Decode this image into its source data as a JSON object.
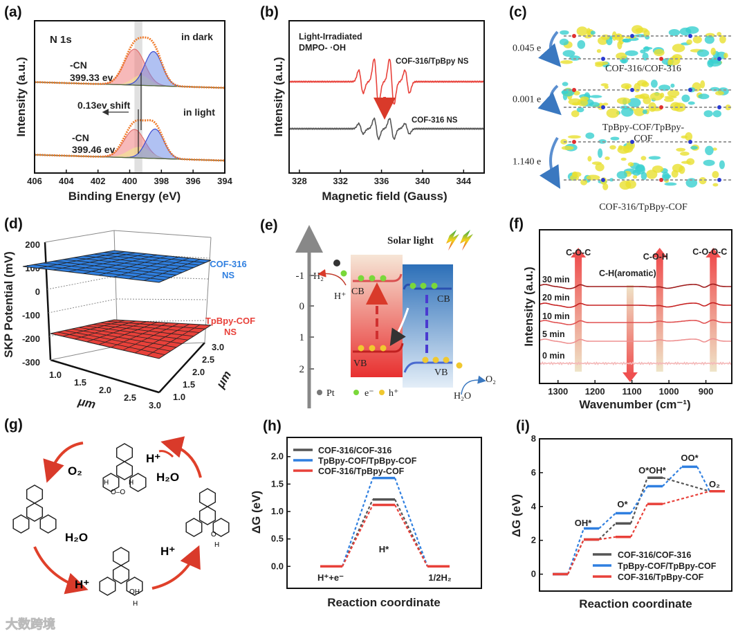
{
  "panel_labels": [
    "(a)",
    "(b)",
    "(c)",
    "(d)",
    "(e)",
    "(f)",
    "(g)",
    "(h)",
    "(i)"
  ],
  "watermark": "大数跨境",
  "chart_data": [
    {
      "id": "a",
      "type": "line",
      "title": "N 1s",
      "xlabel": "Binding Energy (eV)",
      "ylabel": "Intensity (a.u.)",
      "xlim": [
        406,
        394
      ],
      "xticks": [
        "406",
        "404",
        "402",
        "400",
        "398",
        "396",
        "394"
      ],
      "highlight_band_ev": [
        399.2,
        399.7
      ],
      "spectra": [
        {
          "name": "in dark",
          "cn_label": "-CN",
          "cn_value": "399.33 ev",
          "peaks": [
            {
              "component": "C-N",
              "center": 399.7,
              "width": 0.65,
              "height": 1.0,
              "color": "#f08080"
            },
            {
              "component": "yellow",
              "center": 399.3,
              "width": 0.55,
              "height": 0.28,
              "color": "#f2ee8a"
            },
            {
              "component": "blue",
              "center": 398.5,
              "width": 0.55,
              "height": 0.95,
              "color": "#6f8ee8"
            }
          ]
        },
        {
          "name": "in light",
          "cn_label": "-CN",
          "cn_value": "399.46 ev",
          "peaks": [
            {
              "component": "C-N",
              "center": 399.7,
              "width": 0.65,
              "height": 0.82,
              "color": "#f08080"
            },
            {
              "component": "yellow",
              "center": 399.4,
              "width": 0.7,
              "height": 0.32,
              "color": "#f2ee8a"
            },
            {
              "component": "blue",
              "center": 398.4,
              "width": 0.55,
              "height": 0.85,
              "color": "#6f8ee8"
            }
          ]
        }
      ],
      "shift_label": "0.13ev shift"
    },
    {
      "id": "b",
      "type": "line",
      "title_lines": [
        "Light-Irradiated",
        "DMPO- ·OH"
      ],
      "xlabel": "Magnetic field (Gauss)",
      "ylabel": "Intensity (a.u.)",
      "xlim": [
        327,
        346
      ],
      "xticks": [
        328,
        332,
        336,
        340,
        344
      ],
      "line_positions": [
        334.0,
        335.5,
        337.0,
        338.5
      ],
      "relative_intensities": [
        1,
        2,
        2,
        1
      ],
      "series": [
        {
          "name": "COF-316/TpBpy NS",
          "amplitude": 1.0,
          "color": "#e8413a"
        },
        {
          "name": "COF-316 NS",
          "amplitude": 0.45,
          "color": "#555555"
        }
      ]
    },
    {
      "id": "d",
      "type": "surface",
      "ylabel": "SKP Potential (mV)",
      "xlabel": "μm",
      "zlabel": "μm",
      "zlim": [
        -300,
        200
      ],
      "zticks": [
        "200",
        "100",
        "0",
        "-100",
        "-200",
        "-300"
      ],
      "xticks": [
        "1.0",
        "1.5",
        "2.0",
        "2.5",
        "3.0"
      ],
      "yticks": [
        "1.0",
        "1.5",
        "2.0",
        "2.5",
        "3.0"
      ],
      "series": [
        {
          "name_lines": [
            "COF-316",
            "NS"
          ],
          "potential_mV": 100,
          "color": "#2f7fe0"
        },
        {
          "name_lines": [
            "TpBpy-COF",
            "NS"
          ],
          "potential_mV": -200,
          "color": "#e8413a"
        }
      ]
    },
    {
      "id": "f",
      "type": "line",
      "xlabel": "Wavenumber (cm⁻¹)",
      "ylabel": "Intensity (a.u.)",
      "xlim": [
        1350,
        830
      ],
      "xticks": [
        1300,
        1200,
        1100,
        1000,
        900
      ],
      "series": [
        {
          "name": "30 min",
          "color": "#9e1a1a"
        },
        {
          "name": "20 min",
          "color": "#c62020"
        },
        {
          "name": "10 min",
          "color": "#e05050"
        },
        {
          "name": "5 min",
          "color": "#ee9090"
        },
        {
          "name": "0 min",
          "color": "#f4b8b8"
        }
      ],
      "annotations": [
        {
          "label": "C-O-C",
          "wavenumber": 1245,
          "direction": "up"
        },
        {
          "label": "C-H(aromatic)",
          "wavenumber": 1105,
          "direction": "down"
        },
        {
          "label": "C-O-H",
          "wavenumber": 1025,
          "direction": "up"
        },
        {
          "label": "C-O-O-C",
          "wavenumber": 880,
          "direction": "up"
        }
      ]
    },
    {
      "id": "h",
      "type": "line",
      "xlabel": "Reaction coordinate",
      "ylabel": "ΔG (eV)",
      "ylim": [
        -0.4,
        2.35
      ],
      "yticks": [
        "0.0",
        "0.5",
        "1.0",
        "1.5",
        "2.0"
      ],
      "states": [
        "H⁺+e⁻",
        "H*",
        "1/2H₂"
      ],
      "series": [
        {
          "name": "COF-316/COF-316",
          "color": "#555555",
          "values": [
            0,
            1.22,
            0
          ]
        },
        {
          "name": "TpBpy-COF/TpBpy-COF",
          "color": "#2f7fe0",
          "values": [
            0,
            1.61,
            0
          ]
        },
        {
          "name": "COF-316/TpBpy-COF",
          "color": "#e8413a",
          "values": [
            0,
            1.12,
            0
          ]
        }
      ]
    },
    {
      "id": "i",
      "type": "line",
      "xlabel": "Reaction coordinate",
      "ylabel": "ΔG (eV)",
      "ylim": [
        -1,
        8
      ],
      "yticks": [
        "0",
        "2",
        "4",
        "6",
        "8"
      ],
      "states": [
        "",
        "OH*",
        "O*",
        "O*OH*",
        "OO*",
        "O₂"
      ],
      "series": [
        {
          "name": "COF-316/COF-316",
          "color": "#555555",
          "values": [
            0,
            2.05,
            3.0,
            5.7,
            null,
            4.9
          ]
        },
        {
          "name": "TpBpy-COF/TpBpy-COF",
          "color": "#2f7fe0",
          "values": [
            0,
            2.7,
            3.6,
            5.2,
            6.35,
            4.9
          ]
        },
        {
          "name": "COF-316/TpBpy-COF",
          "color": "#e8413a",
          "values": [
            0,
            2.05,
            2.2,
            4.15,
            null,
            4.9
          ]
        }
      ]
    }
  ],
  "panel_c": {
    "rows": [
      {
        "charge": "0.045 e",
        "label_lines": [
          "COF-316/COF-316"
        ]
      },
      {
        "charge": "0.001 e",
        "label_lines": [
          "TpBpy-COF/TpBpy-",
          "COF"
        ]
      },
      {
        "charge": "1.140 e",
        "label_lines": [
          "COF-316/TpBpy-COF"
        ]
      }
    ]
  },
  "panel_e": {
    "title": "Solar light",
    "axis_ticks": [
      "-1",
      "0",
      "1",
      "2"
    ],
    "cb": "CB",
    "vb": "VB",
    "h2": "H₂",
    "hplus": "H⁺",
    "o2": "O₂",
    "h2o": "H₂O",
    "legend": [
      "Pt",
      "e⁻",
      "h⁺"
    ]
  },
  "panel_g": {
    "labels": [
      "O₂",
      "H⁺",
      "H₂O",
      "H₂O",
      "H⁺",
      "H⁺"
    ],
    "atom_labels": [
      "H",
      "O–O",
      "H",
      "O",
      "H",
      "OH",
      "H"
    ]
  }
}
